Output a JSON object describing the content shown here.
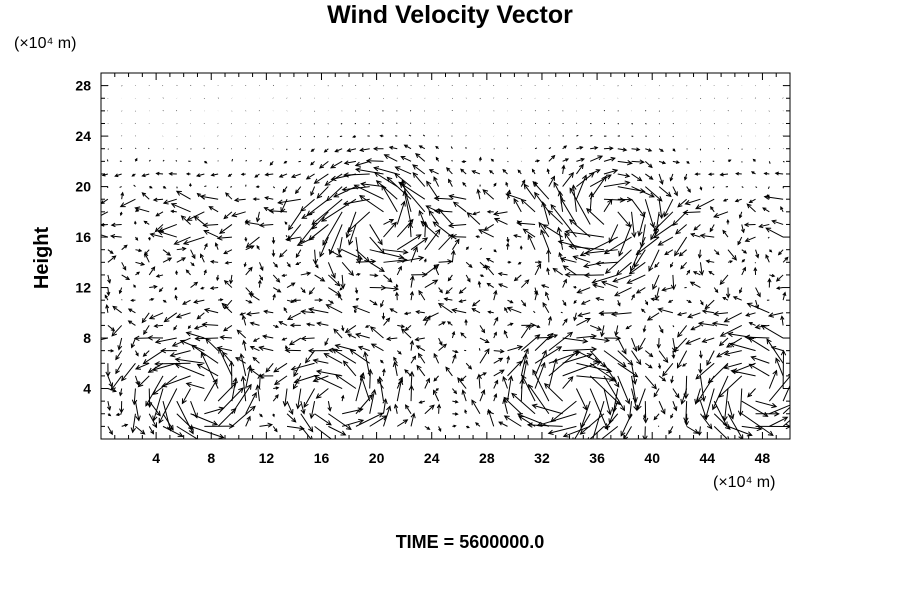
{
  "chart_data": {
    "type": "vector_field",
    "title": "Wind Velocity Vector",
    "ylabel": "Height",
    "y_unit_label": "(×10⁴ m)",
    "x_unit_label": "(×10⁴ m)",
    "time_label": "TIME = 5600000.0",
    "xlim": [
      0,
      50
    ],
    "ylim": [
      0,
      29
    ],
    "x_ticks": [
      4,
      8,
      12,
      16,
      20,
      24,
      28,
      32,
      36,
      40,
      44,
      48
    ],
    "y_ticks": [
      4,
      8,
      12,
      16,
      20,
      24,
      28
    ],
    "grid": false,
    "x_step": 1,
    "y_step": 1,
    "vortices": [
      {
        "x": 7,
        "y": 3.5,
        "strength": 1.0
      },
      {
        "x": 17,
        "y": 3,
        "strength": 0.8
      },
      {
        "x": 34,
        "y": 3.5,
        "strength": -1.2
      },
      {
        "x": 47.5,
        "y": 4,
        "strength": 1.0
      },
      {
        "x": 20,
        "y": 17.5,
        "strength": 0.9
      },
      {
        "x": 37,
        "y": 17,
        "strength": -1.0
      }
    ]
  }
}
